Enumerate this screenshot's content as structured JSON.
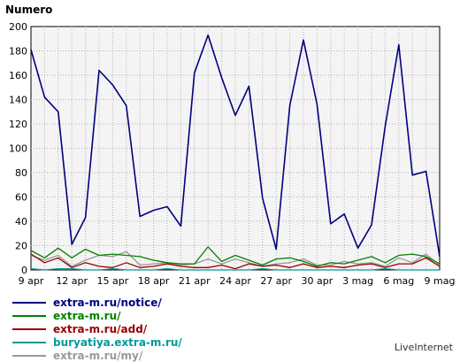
{
  "chart_data": {
    "type": "line",
    "ylabel": "Numero",
    "ylim": [
      0,
      200
    ],
    "yticks": [
      "0",
      "20",
      "40",
      "60",
      "80",
      "100",
      "120",
      "140",
      "160",
      "180",
      "200"
    ],
    "xtick_labels": [
      "9 apr",
      "12 apr",
      "15 apr",
      "18 apr",
      "21 apr",
      "24 apr",
      "27 apr",
      "30 apr",
      "3 mag",
      "6 mag",
      "9 mag"
    ],
    "grid": true,
    "legend_position": "bottom-left",
    "series": [
      {
        "name": "extra-m.ru/notice/",
        "color": "#00007f",
        "values": [
          181,
          142,
          130,
          21,
          43,
          164,
          152,
          135,
          44,
          49,
          52,
          36,
          162,
          193,
          158,
          127,
          151,
          59,
          17,
          135,
          189,
          136,
          38,
          46,
          18,
          37,
          118,
          185,
          78,
          81,
          11
        ]
      },
      {
        "name": "extra-m.ru/",
        "color": "#008000",
        "values": [
          16,
          10,
          18,
          10,
          17,
          12,
          13,
          12,
          11,
          8,
          6,
          5,
          5,
          19,
          7,
          12,
          8,
          4,
          9,
          10,
          7,
          3,
          6,
          5,
          8,
          11,
          6,
          12,
          13,
          11,
          5
        ]
      },
      {
        "name": "extra-m.ru/add/",
        "color": "#990000",
        "values": [
          13,
          6,
          10,
          2,
          6,
          3,
          2,
          6,
          2,
          3,
          5,
          3,
          2,
          2,
          4,
          1,
          5,
          3,
          4,
          2,
          5,
          2,
          3,
          2,
          4,
          5,
          2,
          5,
          5,
          10,
          3
        ]
      },
      {
        "name": "buryatiya.extra-m.ru/",
        "color": "#009999",
        "values": [
          1,
          0,
          1,
          1,
          0,
          0,
          1,
          0,
          0,
          0,
          1,
          0,
          0,
          0,
          0,
          0,
          0,
          1,
          0,
          0,
          0,
          0,
          0,
          0,
          0,
          0,
          1,
          0,
          0,
          0,
          0
        ]
      },
      {
        "name": "extra-m.ru/my/",
        "color": "#999999",
        "values": [
          12,
          8,
          12,
          3,
          8,
          12,
          11,
          15,
          4,
          5,
          6,
          4,
          5,
          9,
          5,
          9,
          6,
          3,
          5,
          6,
          9,
          4,
          4,
          7,
          5,
          6,
          3,
          10,
          6,
          13,
          4
        ]
      }
    ]
  },
  "brand": "LiveInternet"
}
